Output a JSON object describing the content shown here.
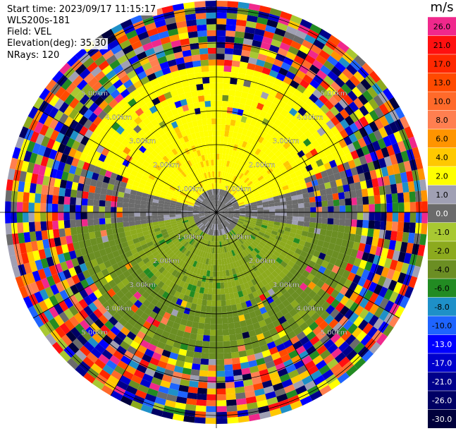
{
  "header": {
    "start_time": "Start time: 2023/09/17 11:15:17",
    "instrument": "WLS200s-181",
    "field": "Field: VEL",
    "elevation": "Elevation(deg): 35.30",
    "nrays": "NRays: 120"
  },
  "colorbar": {
    "unit": "m/s",
    "entries": [
      {
        "label": "26.0",
        "color": "#f0288c",
        "dark": false
      },
      {
        "label": "21.0",
        "color": "#ff1010",
        "dark": false
      },
      {
        "label": "17.0",
        "color": "#ff2800",
        "dark": false
      },
      {
        "label": "13.0",
        "color": "#ff4a00",
        "dark": false
      },
      {
        "label": "10.0",
        "color": "#ff6a2a",
        "dark": false
      },
      {
        "label": "8.0",
        "color": "#ff7f50",
        "dark": false
      },
      {
        "label": "6.0",
        "color": "#ff9400",
        "dark": false
      },
      {
        "label": "4.0",
        "color": "#ffc800",
        "dark": false
      },
      {
        "label": "2.0",
        "color": "#ffff00",
        "dark": false
      },
      {
        "label": "1.0",
        "color": "#a0a0b4",
        "dark": false
      },
      {
        "label": "0.0",
        "color": "#6b6b6b",
        "dark": true
      },
      {
        "label": "-1.0",
        "color": "#a8c832",
        "dark": false
      },
      {
        "label": "-2.0",
        "color": "#8caa1e",
        "dark": false
      },
      {
        "label": "-4.0",
        "color": "#6b8e23",
        "dark": false
      },
      {
        "label": "-6.0",
        "color": "#228b22",
        "dark": false
      },
      {
        "label": "-8.0",
        "color": "#1e90c8",
        "dark": false
      },
      {
        "label": "-10.0",
        "color": "#1e64ff",
        "dark": false
      },
      {
        "label": "-13.0",
        "color": "#0000ff",
        "dark": true
      },
      {
        "label": "-17.0",
        "color": "#0000cd",
        "dark": true
      },
      {
        "label": "-21.0",
        "color": "#00008b",
        "dark": true
      },
      {
        "label": "-26.0",
        "color": "#000064",
        "dark": true
      },
      {
        "label": "-30.0",
        "color": "#00003c",
        "dark": true
      }
    ]
  },
  "range_rings": {
    "inner_labels": [
      "1.00km",
      "2.00km",
      "3.00km",
      "4.00km",
      "5.00km"
    ],
    "values_km": [
      1,
      2,
      3,
      4,
      5
    ]
  }
}
